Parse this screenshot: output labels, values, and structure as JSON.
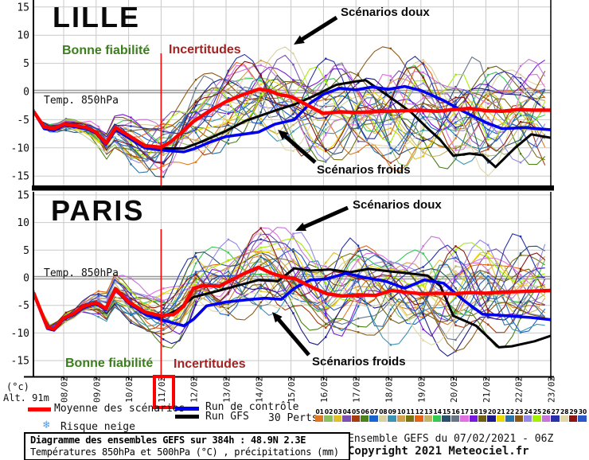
{
  "charts": [
    {
      "title": "LILLE",
      "labels": {
        "good": "Bonne fiabilité",
        "uncertain": "Incertitudes",
        "temp": "Temp. 850hPa",
        "mild": "Scénarios doux",
        "cold": "Scénarios froids"
      }
    },
    {
      "title": "PARIS",
      "labels": {
        "good": "Bonne fiabilité",
        "uncertain": "Incertitudes",
        "temp": "Temp. 850hPa",
        "mild": "Scénarios doux",
        "cold": "Scénarios froids"
      }
    }
  ],
  "axis": {
    "unit": "(°c)",
    "altitude": "Alt. 91m",
    "highlight_date": "11/02"
  },
  "legend": {
    "mean": "Moyenne des scénarios",
    "control": "Run de contrôle",
    "gfs": "Run GFS",
    "perts_label": "30 Perts.",
    "snow": "Risque neige",
    "snow_icon": "❄",
    "mean_color": "#ff0000",
    "control_color": "#0000ee",
    "gfs_color": "#000000",
    "perturbations": [
      {
        "n": "01",
        "color": "#e07820"
      },
      {
        "n": "02",
        "color": "#8cc05c"
      },
      {
        "n": "03",
        "color": "#e0c028"
      },
      {
        "n": "04",
        "color": "#7a50b2"
      },
      {
        "n": "05",
        "color": "#a43c10"
      },
      {
        "n": "06",
        "color": "#4c8018"
      },
      {
        "n": "07",
        "color": "#1864cc"
      },
      {
        "n": "08",
        "color": "#d8d0a0"
      },
      {
        "n": "09",
        "color": "#3c94b4"
      },
      {
        "n": "10",
        "color": "#d0a050"
      },
      {
        "n": "11",
        "color": "#7c7410"
      },
      {
        "n": "12",
        "color": "#e86414"
      },
      {
        "n": "13",
        "color": "#c4b468"
      },
      {
        "n": "14",
        "color": "#34c854"
      },
      {
        "n": "15",
        "color": "#28506c"
      },
      {
        "n": "16",
        "color": "#667686"
      },
      {
        "n": "17",
        "color": "#e070e0"
      },
      {
        "n": "18",
        "color": "#7a18e0"
      },
      {
        "n": "19",
        "color": "#6e5e14"
      },
      {
        "n": "20",
        "color": "#1c1c88"
      },
      {
        "n": "21",
        "color": "#ecd800"
      },
      {
        "n": "22",
        "color": "#2874a8"
      },
      {
        "n": "23",
        "color": "#8a5a14"
      },
      {
        "n": "24",
        "color": "#9288e8"
      },
      {
        "n": "25",
        "color": "#a4f000"
      },
      {
        "n": "26",
        "color": "#c874d8"
      },
      {
        "n": "27",
        "color": "#2830aa"
      },
      {
        "n": "28",
        "color": "#e0d8a8"
      },
      {
        "n": "29",
        "color": "#8c1410"
      },
      {
        "n": "30",
        "color": "#2858c8"
      }
    ]
  },
  "footer": {
    "box_line1": "Diagramme des ensembles GEFS sur 384h : 48.9N 2.3E",
    "box_line2": "Températures 850hPa et 500hPa (°C) , précipitations (mm)",
    "run_info": "Ensemble GEFS du 07/02/2021 - 06Z",
    "copyright": "Copyright 2021 Meteociel.fr"
  },
  "chart_data": [
    {
      "type": "line",
      "title": "LILLE  Temp. 850hPa (°C)",
      "x_tick_labels": [
        "08/02",
        "09/02",
        "10/02",
        "11/02",
        "12/02",
        "13/02",
        "14/02",
        "15/02",
        "16/02",
        "17/02",
        "18/02",
        "19/02",
        "20/02",
        "21/02",
        "22/02",
        "23/02"
      ],
      "y_ticks": [
        15,
        10,
        5,
        0,
        -5,
        -10,
        -15
      ],
      "ylim": [
        -17,
        16
      ],
      "grid": true,
      "highlight_x": "11/02",
      "ensemble": {
        "members": 30,
        "note": "30 GEFS perturbation members fanning out after 11/02"
      },
      "series": [
        {
          "name": "Moyenne des scénarios",
          "color": "#ff0000",
          "points": [
            [
              0.07,
              -3.5
            ],
            [
              0.4,
              -6.3
            ],
            [
              0.7,
              -6.6
            ],
            [
              1.0,
              -5.8
            ],
            [
              1.3,
              -6.0
            ],
            [
              1.7,
              -6.4
            ],
            [
              2.0,
              -7.2
            ],
            [
              2.3,
              -9.2
            ],
            [
              2.6,
              -6.4
            ],
            [
              3.0,
              -7.8
            ],
            [
              3.5,
              -9.6
            ],
            [
              4.0,
              -9.9
            ],
            [
              4.3,
              -8.9
            ],
            [
              4.7,
              -6.9
            ],
            [
              5.0,
              -5.3
            ],
            [
              5.5,
              -3.4
            ],
            [
              6.0,
              -1.8
            ],
            [
              6.5,
              -0.6
            ],
            [
              7.0,
              0.4
            ],
            [
              7.3,
              0.2
            ],
            [
              7.6,
              -0.5
            ],
            [
              8.0,
              -0.9
            ],
            [
              8.5,
              -2.4
            ],
            [
              9.0,
              -3.9
            ],
            [
              9.5,
              -3.6
            ],
            [
              10.0,
              -3.7
            ],
            [
              10.5,
              -3.6
            ],
            [
              11.0,
              -3.5
            ],
            [
              11.5,
              -3.4
            ],
            [
              12.0,
              -3.3
            ],
            [
              12.5,
              -3.5
            ],
            [
              13.0,
              -3.2
            ],
            [
              13.5,
              -3.0
            ],
            [
              14.0,
              -3.4
            ],
            [
              14.5,
              -3.5
            ],
            [
              15.0,
              -3.2
            ],
            [
              15.5,
              -3.3
            ],
            [
              16.0,
              -3.3
            ]
          ]
        },
        {
          "name": "Run de contrôle",
          "color": "#0000ee",
          "points": [
            [
              0.07,
              -3.5
            ],
            [
              0.4,
              -6.6
            ],
            [
              0.7,
              -6.9
            ],
            [
              1.0,
              -6.0
            ],
            [
              1.4,
              -6.3
            ],
            [
              1.7,
              -6.6
            ],
            [
              2.0,
              -7.4
            ],
            [
              2.3,
              -9.4
            ],
            [
              2.6,
              -6.8
            ],
            [
              3.0,
              -8.2
            ],
            [
              3.5,
              -10.0
            ],
            [
              4.0,
              -10.4
            ],
            [
              4.7,
              -10.7
            ],
            [
              5.0,
              -10.2
            ],
            [
              5.5,
              -9.0
            ],
            [
              6.0,
              -8.0
            ],
            [
              6.5,
              -7.6
            ],
            [
              7.0,
              -7.2
            ],
            [
              7.5,
              -5.8
            ],
            [
              8.1,
              -5.0
            ],
            [
              8.6,
              -2.0
            ],
            [
              9.0,
              -0.5
            ],
            [
              9.5,
              0.6
            ],
            [
              10.0,
              0.3
            ],
            [
              10.5,
              0.8
            ],
            [
              11.0,
              0.4
            ],
            [
              11.5,
              0.9
            ],
            [
              12.0,
              0.2
            ],
            [
              12.7,
              -1.6
            ],
            [
              13.3,
              -3.5
            ],
            [
              14.0,
              -5.5
            ],
            [
              14.5,
              -6.6
            ],
            [
              15.2,
              -6.4
            ],
            [
              16.0,
              -6.8
            ]
          ]
        },
        {
          "name": "Run GFS",
          "color": "#000000",
          "points": [
            [
              0.07,
              -3.6
            ],
            [
              0.4,
              -6.4
            ],
            [
              0.7,
              -6.7
            ],
            [
              1.0,
              -5.9
            ],
            [
              1.4,
              -6.2
            ],
            [
              1.7,
              -6.5
            ],
            [
              2.0,
              -7.1
            ],
            [
              2.3,
              -9.1
            ],
            [
              2.6,
              -6.6
            ],
            [
              3.0,
              -8.0
            ],
            [
              3.5,
              -9.8
            ],
            [
              4.0,
              -10.1
            ],
            [
              4.7,
              -10.1
            ],
            [
              5.3,
              -8.8
            ],
            [
              6.0,
              -7.0
            ],
            [
              6.6,
              -5.2
            ],
            [
              7.0,
              -4.4
            ],
            [
              7.6,
              -3.2
            ],
            [
              8.1,
              -2.3
            ],
            [
              8.7,
              -0.8
            ],
            [
              9.4,
              1.2
            ],
            [
              10.0,
              1.8
            ],
            [
              10.3,
              2.0
            ],
            [
              10.8,
              0.0
            ],
            [
              11.3,
              -2.0
            ],
            [
              11.7,
              -3.7
            ],
            [
              12.2,
              -6.5
            ],
            [
              12.6,
              -8.6
            ],
            [
              13.0,
              -11.4
            ],
            [
              13.5,
              -11.0
            ],
            [
              13.9,
              -11.3
            ],
            [
              14.3,
              -13.4
            ],
            [
              14.9,
              -10.0
            ],
            [
              15.4,
              -7.6
            ],
            [
              16.0,
              -8.2
            ]
          ]
        }
      ]
    },
    {
      "type": "line",
      "title": "PARIS  Temp. 850hPa (°C)",
      "x_tick_labels": [
        "08/02",
        "09/02",
        "10/02",
        "11/02",
        "12/02",
        "13/02",
        "14/02",
        "15/02",
        "16/02",
        "17/02",
        "18/02",
        "19/02",
        "20/02",
        "21/02",
        "22/02",
        "23/02"
      ],
      "y_ticks": [
        15,
        10,
        5,
        0,
        -5,
        -10,
        -15
      ],
      "ylim": [
        -17,
        16
      ],
      "grid": true,
      "highlight_x": "11/02",
      "ensemble": {
        "members": 30,
        "note": "30 GEFS perturbation members fanning out after 11/02"
      },
      "series": [
        {
          "name": "Moyenne des scénarios",
          "color": "#ff0000",
          "points": [
            [
              0.07,
              -2.7
            ],
            [
              0.5,
              -9.0
            ],
            [
              0.7,
              -9.3
            ],
            [
              1.0,
              -7.3
            ],
            [
              1.3,
              -6.5
            ],
            [
              1.6,
              -5.2
            ],
            [
              2.0,
              -4.5
            ],
            [
              2.3,
              -5.6
            ],
            [
              2.6,
              -2.0
            ],
            [
              3.0,
              -4.4
            ],
            [
              3.5,
              -6.2
            ],
            [
              4.0,
              -6.9
            ],
            [
              4.4,
              -6.6
            ],
            [
              4.7,
              -5.1
            ],
            [
              5.0,
              -1.9
            ],
            [
              5.3,
              -1.4
            ],
            [
              5.8,
              -1.5
            ],
            [
              6.2,
              -0.3
            ],
            [
              6.6,
              0.9
            ],
            [
              7.0,
              1.9
            ],
            [
              7.4,
              0.8
            ],
            [
              7.8,
              0.1
            ],
            [
              8.1,
              -0.1
            ],
            [
              8.6,
              -1.6
            ],
            [
              9.1,
              -2.9
            ],
            [
              9.6,
              -3.3
            ],
            [
              10.1,
              -3.1
            ],
            [
              10.6,
              -3.2
            ],
            [
              11.1,
              -2.3
            ],
            [
              11.5,
              -2.6
            ],
            [
              12.0,
              -2.9
            ],
            [
              12.5,
              -2.8
            ],
            [
              13.0,
              -2.9
            ],
            [
              13.5,
              -2.7
            ],
            [
              14.0,
              -2.8
            ],
            [
              14.5,
              -2.6
            ],
            [
              15.0,
              -2.5
            ],
            [
              15.5,
              -2.4
            ],
            [
              16.0,
              -2.3
            ]
          ]
        },
        {
          "name": "Run de contrôle",
          "color": "#0000ee",
          "points": [
            [
              0.07,
              -2.8
            ],
            [
              0.5,
              -9.2
            ],
            [
              0.7,
              -9.5
            ],
            [
              1.0,
              -7.5
            ],
            [
              1.3,
              -6.7
            ],
            [
              1.6,
              -5.4
            ],
            [
              2.0,
              -4.7
            ],
            [
              2.3,
              -5.8
            ],
            [
              2.6,
              -2.2
            ],
            [
              3.0,
              -4.6
            ],
            [
              3.5,
              -6.6
            ],
            [
              4.0,
              -7.6
            ],
            [
              4.7,
              -8.7
            ],
            [
              5.0,
              -7.5
            ],
            [
              5.4,
              -5.1
            ],
            [
              6.0,
              -4.4
            ],
            [
              6.6,
              -4.0
            ],
            [
              7.2,
              -3.7
            ],
            [
              7.7,
              -3.9
            ],
            [
              8.1,
              -1.9
            ],
            [
              8.6,
              -0.4
            ],
            [
              9.1,
              -0.2
            ],
            [
              9.7,
              0.8
            ],
            [
              10.3,
              0.0
            ],
            [
              10.9,
              -0.6
            ],
            [
              11.5,
              -1.9
            ],
            [
              12.1,
              -0.4
            ],
            [
              12.7,
              -1.0
            ],
            [
              13.3,
              -4.0
            ],
            [
              13.9,
              -6.6
            ],
            [
              14.7,
              -6.9
            ],
            [
              15.4,
              -7.2
            ],
            [
              16.0,
              -7.6
            ]
          ]
        },
        {
          "name": "Run GFS",
          "color": "#000000",
          "points": [
            [
              0.07,
              -2.7
            ],
            [
              0.5,
              -9.1
            ],
            [
              0.7,
              -9.4
            ],
            [
              1.0,
              -7.4
            ],
            [
              1.3,
              -6.6
            ],
            [
              1.6,
              -5.3
            ],
            [
              2.0,
              -4.6
            ],
            [
              2.3,
              -5.7
            ],
            [
              2.6,
              -2.1
            ],
            [
              3.0,
              -4.5
            ],
            [
              3.5,
              -6.4
            ],
            [
              4.0,
              -7.2
            ],
            [
              4.5,
              -5.8
            ],
            [
              5.0,
              -3.5
            ],
            [
              5.8,
              -2.3
            ],
            [
              6.5,
              -1.2
            ],
            [
              7.0,
              -0.4
            ],
            [
              7.6,
              -0.6
            ],
            [
              8.1,
              1.7
            ],
            [
              8.6,
              1.3
            ],
            [
              9.2,
              1.5
            ],
            [
              9.8,
              1.0
            ],
            [
              10.4,
              1.6
            ],
            [
              11.0,
              1.2
            ],
            [
              11.6,
              0.8
            ],
            [
              12.2,
              0.4
            ],
            [
              12.6,
              -1.5
            ],
            [
              13.0,
              -6.9
            ],
            [
              13.7,
              -8.7
            ],
            [
              14.4,
              -12.6
            ],
            [
              14.8,
              -12.4
            ],
            [
              15.5,
              -11.5
            ],
            [
              16.0,
              -10.5
            ]
          ]
        }
      ]
    }
  ]
}
